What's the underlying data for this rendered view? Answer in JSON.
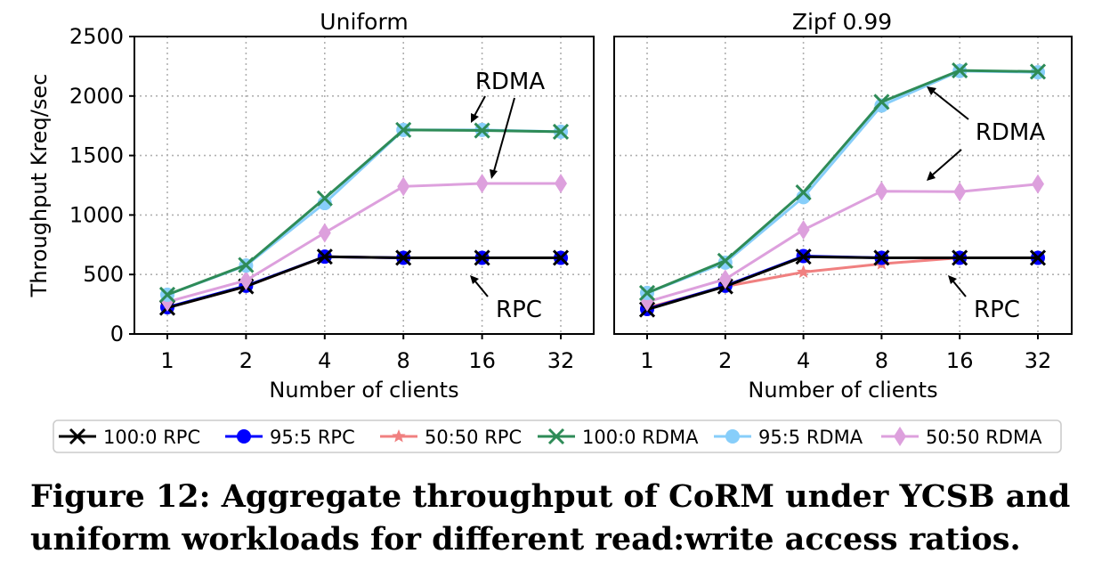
{
  "caption": "Figure 12: Aggregate throughput of CoRM under YCSB and uniform workloads for different read:write access ratios.",
  "ylabel": "Throughput Kreq/sec",
  "xlabel": "Number of clients",
  "yticks": [
    0,
    500,
    1000,
    1500,
    2000,
    2500
  ],
  "annotations": {
    "rdma": "RDMA",
    "rpc": "RPC"
  },
  "styles": {
    "100:0 RPC": {
      "color": "#000000",
      "marker": "x"
    },
    "95:5 RPC": {
      "color": "#0000ff",
      "marker": "o"
    },
    "50:50 RPC": {
      "color": "#f08080",
      "marker": "*"
    },
    "100:0 RDMA": {
      "color": "#2e8b57",
      "marker": "x"
    },
    "95:5 RDMA": {
      "color": "#87cefa",
      "marker": "o"
    },
    "50:50 RDMA": {
      "color": "#dda0dd",
      "marker": "d"
    }
  },
  "legend": [
    "100:0 RPC",
    "95:5 RPC",
    "50:50 RPC",
    "100:0 RDMA",
    "95:5 RDMA",
    "50:50 RDMA"
  ],
  "chart_data": [
    {
      "type": "line",
      "title": "Uniform",
      "xlabel": "Number of clients",
      "ylabel": "Throughput Kreq/sec",
      "categories": [
        "1",
        "2",
        "4",
        "8",
        "16",
        "32"
      ],
      "ylim": [
        0,
        2500
      ],
      "grid": true,
      "series": [
        {
          "name": "50:50 RPC",
          "values": [
            220,
            400,
            650,
            640,
            640,
            640
          ]
        },
        {
          "name": "95:5 RPC",
          "values": [
            225,
            405,
            650,
            640,
            640,
            640
          ]
        },
        {
          "name": "100:0 RPC",
          "values": [
            220,
            400,
            650,
            640,
            640,
            640
          ]
        },
        {
          "name": "50:50 RDMA",
          "values": [
            270,
            450,
            850,
            1240,
            1265,
            1265
          ]
        },
        {
          "name": "95:5 RDMA",
          "values": [
            330,
            575,
            1100,
            1715,
            1715,
            1700
          ]
        },
        {
          "name": "100:0 RDMA",
          "values": [
            330,
            580,
            1140,
            1715,
            1710,
            1700
          ]
        }
      ]
    },
    {
      "type": "line",
      "title": "Zipf 0.99",
      "xlabel": "Number of clients",
      "ylabel": "",
      "categories": [
        "1",
        "2",
        "4",
        "8",
        "16",
        "32"
      ],
      "ylim": [
        0,
        2500
      ],
      "grid": true,
      "series": [
        {
          "name": "50:50 RPC",
          "values": [
            220,
            400,
            520,
            590,
            640,
            640
          ]
        },
        {
          "name": "95:5 RPC",
          "values": [
            210,
            405,
            655,
            640,
            640,
            640
          ]
        },
        {
          "name": "100:0 RPC",
          "values": [
            205,
            400,
            650,
            640,
            640,
            640
          ]
        },
        {
          "name": "50:50 RDMA",
          "values": [
            270,
            460,
            875,
            1200,
            1195,
            1260
          ]
        },
        {
          "name": "95:5 RDMA",
          "values": [
            345,
            600,
            1150,
            1920,
            2210,
            2200
          ]
        },
        {
          "name": "100:0 RDMA",
          "values": [
            345,
            615,
            1190,
            1950,
            2215,
            2205
          ]
        }
      ]
    }
  ]
}
